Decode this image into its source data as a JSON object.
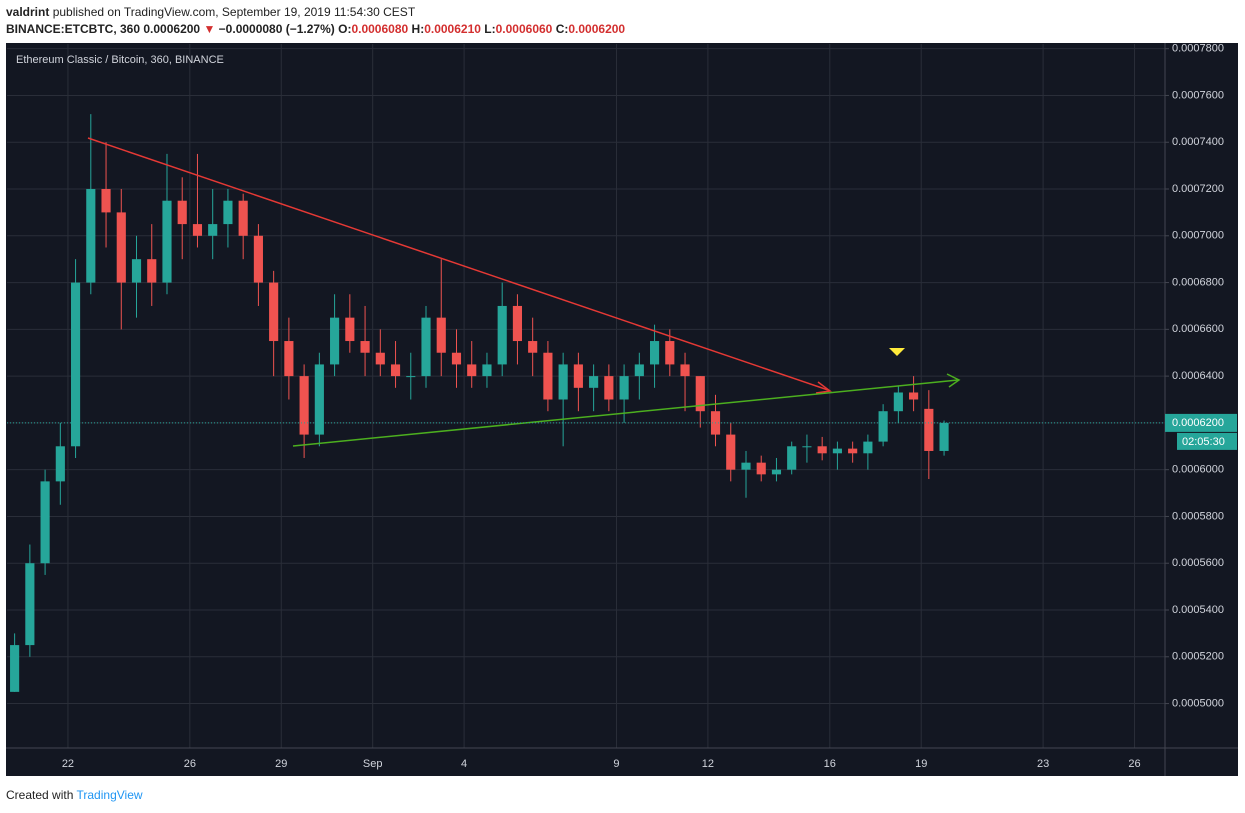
{
  "header": {
    "author": "valdrint",
    "published": "published on TradingView.com, September 19, 2019 11:54:30 CEST",
    "symbol": "BINANCE:ETCBTC, 360",
    "price": "0.0006200",
    "change": "−0.0000080 (−1.27%)",
    "ohlc": [
      {
        "label": "O:",
        "value": "0.0006080"
      },
      {
        "label": "H:",
        "value": "0.0006210"
      },
      {
        "label": "L:",
        "value": "0.0006060"
      },
      {
        "label": "C:",
        "value": "0.0006200"
      }
    ]
  },
  "chart_data": {
    "type": "candlestick",
    "title": "Ethereum Classic / Bitcoin, 360, BINANCE",
    "categories": [
      null,
      null,
      null,
      null,
      "22",
      null,
      null,
      null,
      null,
      null,
      null,
      null,
      "26",
      null,
      null,
      null,
      null,
      null,
      "29",
      null,
      null,
      null,
      null,
      null,
      "Sep",
      null,
      null,
      null,
      null,
      null,
      "4",
      null,
      null,
      null,
      null,
      null,
      null,
      null,
      null,
      null,
      "9",
      null,
      null,
      null,
      null,
      null,
      "12",
      null,
      null,
      null,
      null,
      null,
      null,
      null,
      "16",
      null,
      null,
      null,
      null,
      null,
      "19",
      null,
      null,
      null,
      null,
      null,
      null,
      null,
      "23",
      null,
      null,
      null,
      null,
      null,
      "26",
      null
    ],
    "open": [
      0.000505,
      0.000525,
      0.00056,
      0.000595,
      0.00061,
      0.00068,
      0.00072,
      0.00071,
      0.00068,
      0.00069,
      0.00068,
      0.000715,
      0.000705,
      0.0007,
      0.000705,
      0.000715,
      0.0007,
      0.00068,
      0.000655,
      0.00064,
      0.000615,
      0.000645,
      0.000665,
      0.000655,
      0.00065,
      0.000645,
      0.00064,
      0.00064,
      0.000665,
      0.00065,
      0.000645,
      0.00064,
      0.000645,
      0.00067,
      0.000655,
      0.00065,
      0.00063,
      0.000645,
      0.000635,
      0.00064,
      0.00063,
      0.00064,
      0.000645,
      0.000655,
      0.000645,
      0.00064,
      0.000625,
      0.000615,
      0.0006,
      0.000603,
      0.000598,
      0.0006,
      0.00061,
      0.00061,
      0.000607,
      0.000609,
      0.000607,
      0.000612,
      0.000625,
      0.000633,
      0.000626,
      0.000608,
      null,
      null,
      null,
      null,
      null,
      null,
      null,
      null,
      null,
      null,
      null,
      null,
      null,
      null
    ],
    "high": [
      0.00053,
      0.000568,
      0.0006,
      0.00062,
      0.00069,
      0.000752,
      0.00074,
      0.00072,
      0.0007,
      0.000705,
      0.000735,
      0.000725,
      0.000735,
      0.00072,
      0.00072,
      0.000718,
      0.000705,
      0.000685,
      0.000665,
      0.000645,
      0.00065,
      0.000675,
      0.000675,
      0.00067,
      0.00066,
      0.000655,
      0.00065,
      0.00067,
      0.00069,
      0.00066,
      0.000655,
      0.00065,
      0.00068,
      0.000675,
      0.000665,
      0.000655,
      0.00065,
      0.00065,
      0.000645,
      0.000645,
      0.000645,
      0.00065,
      0.000662,
      0.00066,
      0.00065,
      0.00064,
      0.000632,
      0.00062,
      0.000608,
      0.000606,
      0.000605,
      0.000612,
      0.000615,
      0.000614,
      0.000612,
      0.000612,
      0.000615,
      0.000628,
      0.000636,
      0.00064,
      0.000634,
      0.000621,
      null,
      null,
      null,
      null,
      null,
      null,
      null,
      null,
      null,
      null,
      null,
      null,
      null,
      null
    ],
    "low": [
      0.000505,
      0.00052,
      0.000555,
      0.000585,
      0.000605,
      0.000675,
      0.000695,
      0.00066,
      0.000665,
      0.00067,
      0.000675,
      0.00069,
      0.000695,
      0.00069,
      0.000695,
      0.00069,
      0.00067,
      0.00064,
      0.00063,
      0.000605,
      0.00061,
      0.00064,
      0.00065,
      0.00064,
      0.00064,
      0.000635,
      0.00063,
      0.000635,
      0.00064,
      0.000635,
      0.000635,
      0.000635,
      0.00064,
      0.000645,
      0.00064,
      0.000625,
      0.00061,
      0.000625,
      0.000625,
      0.000625,
      0.00062,
      0.00063,
      0.000635,
      0.00064,
      0.000625,
      0.000618,
      0.00061,
      0.000595,
      0.000588,
      0.000595,
      0.000595,
      0.000598,
      0.000603,
      0.000604,
      0.0006,
      0.000603,
      0.0006,
      0.00061,
      0.00062,
      0.000625,
      0.000596,
      0.000606,
      null,
      null,
      null,
      null,
      null,
      null,
      null,
      null,
      null,
      null,
      null,
      null,
      null,
      null
    ],
    "close": [
      0.000525,
      0.00056,
      0.000595,
      0.00061,
      0.00068,
      0.00072,
      0.00071,
      0.00068,
      0.00069,
      0.00068,
      0.000715,
      0.000705,
      0.0007,
      0.000705,
      0.000715,
      0.0007,
      0.00068,
      0.000655,
      0.00064,
      0.000615,
      0.000645,
      0.000665,
      0.000655,
      0.00065,
      0.000645,
      0.00064,
      0.00064,
      0.000665,
      0.00065,
      0.000645,
      0.00064,
      0.000645,
      0.00067,
      0.000655,
      0.00065,
      0.00063,
      0.000645,
      0.000635,
      0.00064,
      0.00063,
      0.00064,
      0.000645,
      0.000655,
      0.000645,
      0.00064,
      0.000625,
      0.000615,
      0.0006,
      0.000603,
      0.000598,
      0.0006,
      0.00061,
      0.00061,
      0.000607,
      0.000609,
      0.000607,
      0.000612,
      0.000625,
      0.000633,
      0.00063,
      0.000608,
      0.00062,
      null,
      null,
      null,
      null,
      null,
      null,
      null,
      null,
      null,
      null,
      null,
      null,
      null,
      null
    ],
    "up_color": "#26a69a",
    "down_color": "#ef5350",
    "ylim": [
      0.000481,
      0.000782
    ],
    "yticks": [
      {
        "value": 0.0005,
        "label": "0.0005000"
      },
      {
        "value": 0.00052,
        "label": "0.0005200"
      },
      {
        "value": 0.00054,
        "label": "0.0005400"
      },
      {
        "value": 0.00056,
        "label": "0.0005600"
      },
      {
        "value": 0.00058,
        "label": "0.0005800"
      },
      {
        "value": 0.0006,
        "label": "0.0006000"
      },
      {
        "value": 0.00062,
        "label": "0.0006200"
      },
      {
        "value": 0.00064,
        "label": "0.0006400"
      },
      {
        "value": 0.00066,
        "label": "0.0006600"
      },
      {
        "value": 0.00068,
        "label": "0.0006800"
      },
      {
        "value": 0.0007,
        "label": "0.0007000"
      },
      {
        "value": 0.00072,
        "label": "0.0007200"
      },
      {
        "value": 0.00074,
        "label": "0.0007400"
      },
      {
        "value": 0.00076,
        "label": "0.0007600"
      },
      {
        "value": 0.00078,
        "label": "0.0007800"
      }
    ],
    "last_price": {
      "value": 0.00062,
      "label": "0.0006200"
    },
    "countdown": "02:05:30",
    "grid": true
  },
  "footer": {
    "created": "Created with",
    "brand": "TradingView"
  }
}
